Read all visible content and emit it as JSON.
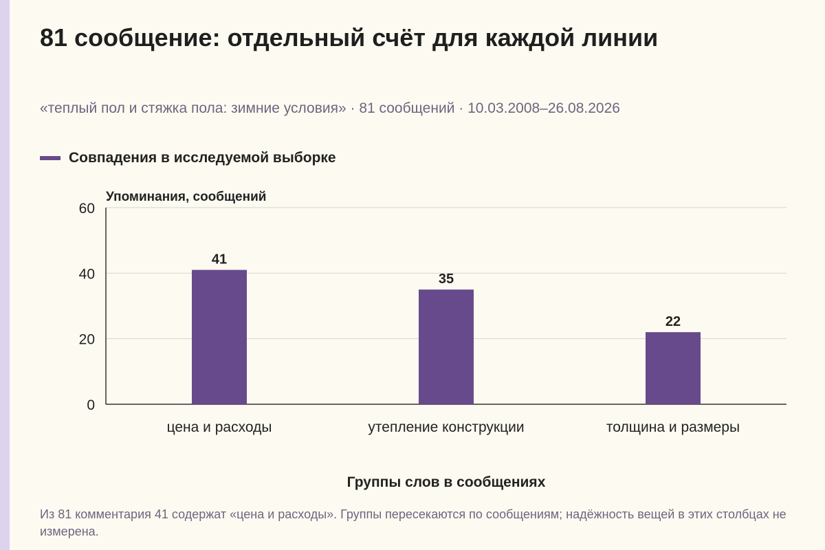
{
  "title": "81 сообщение: отдельный счёт для каждой линии",
  "subtitle": "«теплый пол и стяжка пола: зимние условия» · 81 сообщений · 10.03.2008–26.08.2026",
  "footnote": "Из 81 комментария 41 содержат «цена и расходы». Группы пересекаются по сообщениям; надёжность вещей в этих столбцах не измерена.",
  "colors": {
    "bar": "#674a8c",
    "grid": "#d8d3cf",
    "axis": "#333333",
    "accent": "#ddd3ec"
  },
  "chart_data": {
    "type": "bar",
    "categories": [
      "цена и расходы",
      "утепление конструкции",
      "толщина и размеры"
    ],
    "series": [
      {
        "name": "Совпадения в исследуемой выборке",
        "values": [
          41,
          35,
          22
        ]
      }
    ],
    "ylabel": "Упоминания, сообщений",
    "xlabel": "Группы слов в сообщениях",
    "ylim": [
      0,
      60
    ],
    "yticks": [
      0,
      20,
      40,
      60
    ],
    "grid": true,
    "legend": "top-left",
    "data_labels": true
  }
}
